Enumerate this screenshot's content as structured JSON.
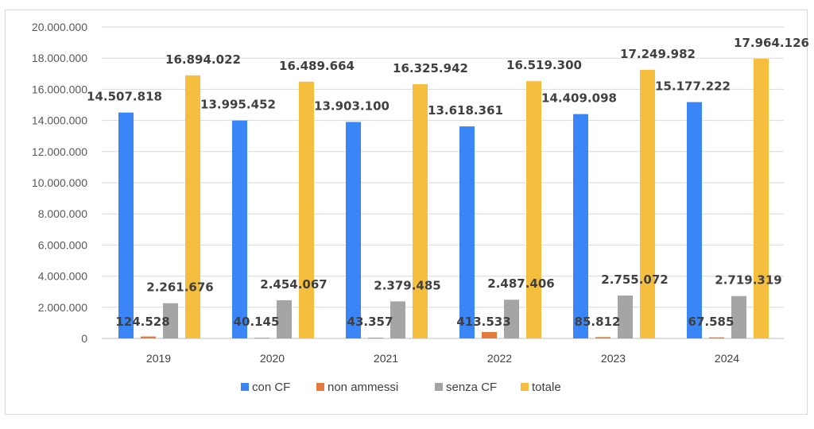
{
  "chart_data": {
    "type": "bar",
    "title": "",
    "xlabel": "",
    "ylabel": "",
    "ylim": [
      0,
      20000000
    ],
    "yticks": [
      0,
      2000000,
      4000000,
      6000000,
      8000000,
      10000000,
      12000000,
      14000000,
      16000000,
      18000000,
      20000000
    ],
    "ytick_labels": [
      "0",
      "2.000.000",
      "4.000.000",
      "6.000.000",
      "8.000.000",
      "10.000.000",
      "12.000.000",
      "14.000.000",
      "16.000.000",
      "18.000.000",
      "20.000.000"
    ],
    "grid": true,
    "legend_position": "bottom",
    "categories": [
      "2019",
      "2020",
      "2021",
      "2022",
      "2023",
      "2024"
    ],
    "series": [
      {
        "name": "con CF",
        "color": "#3b86f7",
        "values": [
          14507818,
          13995452,
          13903100,
          13618361,
          14409098,
          15177222
        ],
        "labels": [
          "14.507.818",
          "13.995.452",
          "13.903.100",
          "13.618.361",
          "14.409.098",
          "15.177.222"
        ]
      },
      {
        "name": "non ammessi",
        "color": "#e37a3e",
        "values": [
          124528,
          40145,
          43357,
          413533,
          85812,
          67585
        ],
        "labels": [
          "124.528",
          "40.145",
          "43.357",
          "413.533",
          "85.812",
          "67.585"
        ]
      },
      {
        "name": "senza CF",
        "color": "#a5a5a5",
        "values": [
          2261676,
          2454067,
          2379485,
          2487406,
          2755072,
          2719319
        ],
        "labels": [
          "2.261.676",
          "2.454.067",
          "2.379.485",
          "2.487.406",
          "2.755.072",
          "2.719.319"
        ]
      },
      {
        "name": "totale",
        "color": "#f6be3e",
        "values": [
          16894022,
          16489664,
          16325942,
          16519300,
          17249982,
          17964126
        ],
        "labels": [
          "16.894.022",
          "16.489.664",
          "16.325.942",
          "16.519.300",
          "17.249.982",
          "17.964.126"
        ]
      }
    ]
  }
}
